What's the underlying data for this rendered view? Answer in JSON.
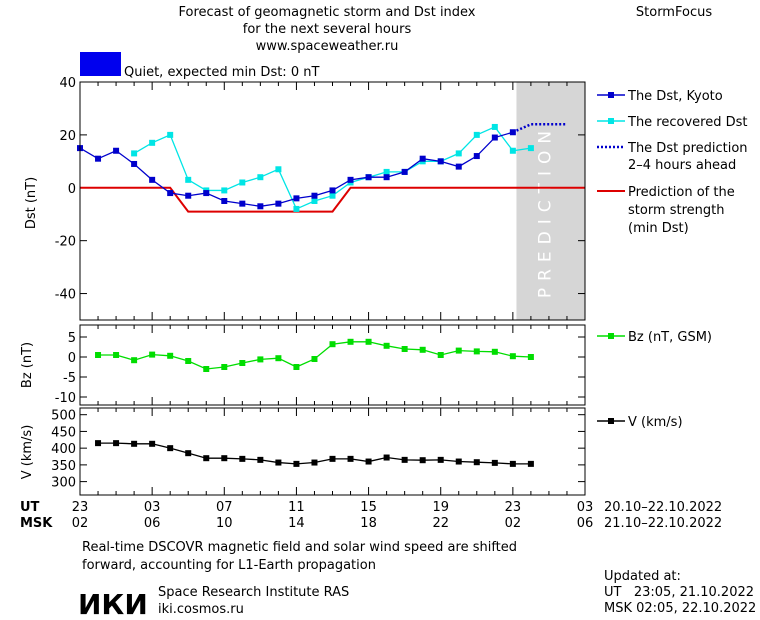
{
  "header": {
    "title_line1": "Forecast of geomagnetic storm and Dst index",
    "title_line2": "for the next several hours",
    "url": "www.spaceweather.ru",
    "brand": "StormFocus"
  },
  "status": {
    "text": "Quiet, expected min Dst: 0 nT",
    "color": "#0000ee"
  },
  "prediction_band_label": "PREDICTION",
  "colors": {
    "dst": "#0000cc",
    "recovered": "#00e5e5",
    "prediction_line": "#dd0000",
    "bz": "#00dd00",
    "v": "#000000",
    "prediction_band": "#d6d6d6"
  },
  "legend": {
    "dst": "The Dst, Kyoto",
    "recovered": "The recovered Dst",
    "dst_prediction_1": "The Dst prediction",
    "dst_prediction_2": "2–4 hours ahead",
    "storm_1": "Prediction of the",
    "storm_2": "storm strength",
    "storm_3": "(min Dst)",
    "bz": "Bz (nT, GSM)",
    "v": "V (km/s)"
  },
  "time_axis": {
    "ut_label": "UT",
    "msk_label": "MSK",
    "ut_ticks": [
      "23",
      "03",
      "07",
      "11",
      "15",
      "19",
      "23",
      "03"
    ],
    "msk_ticks": [
      "02",
      "06",
      "10",
      "14",
      "18",
      "22",
      "02",
      "06"
    ],
    "ut_range": "20.10–22.10.2022",
    "msk_range": "21.10–22.10.2022"
  },
  "footer": {
    "note_line1": "Real-time DSCOVR magnetic field and solar wind speed are shifted",
    "note_line2": "forward, accounting for L1-Earth propagation",
    "logo": "ИКИ",
    "institute": "Space Research Institute RAS",
    "site": "iki.cosmos.ru",
    "updated_label": "Updated at:",
    "updated_ut": "UT   23:05, 21.10.2022",
    "updated_msk": "MSK 02:05, 22.10.2022"
  },
  "chart_data": [
    {
      "type": "line",
      "ylabel": "Dst (nT)",
      "ylim": [
        -50,
        40
      ],
      "yticks": [
        40,
        20,
        0,
        -20,
        -40
      ],
      "x_unit": "hours since 23 UT, 20.10.2022",
      "xlim": [
        0,
        28
      ],
      "prediction_band_x": [
        24.2,
        28
      ],
      "series": [
        {
          "name": "The Dst, Kyoto",
          "x": [
            0,
            1,
            2,
            3,
            4,
            5,
            6,
            7,
            8,
            9,
            10,
            11,
            12,
            13,
            14,
            15,
            16,
            17,
            18,
            19,
            20,
            21,
            22,
            23,
            24
          ],
          "y": [
            15,
            11,
            14,
            9,
            3,
            -2,
            -3,
            -2,
            -5,
            -6,
            -7,
            -6,
            -4,
            -3,
            -1,
            3,
            4,
            4,
            6,
            11,
            10,
            8,
            12,
            19,
            21
          ]
        },
        {
          "name": "The recovered Dst",
          "x": [
            3,
            4,
            5,
            6,
            7,
            8,
            9,
            10,
            11,
            12,
            13,
            14,
            15,
            16,
            17,
            18,
            19,
            20,
            21,
            22,
            23,
            24,
            25
          ],
          "y": [
            13,
            17,
            20,
            3,
            -1,
            -1,
            2,
            4,
            7,
            -8,
            -5,
            -3,
            2,
            4,
            6,
            6,
            10,
            10,
            13,
            20,
            23,
            14,
            15
          ]
        },
        {
          "name": "The Dst prediction 2–4 hours ahead",
          "x": [
            24,
            25,
            26,
            27
          ],
          "y": [
            21,
            24,
            24,
            24
          ]
        }
      ],
      "storm_strength": {
        "name": "Prediction of the storm strength (min Dst)",
        "x": [
          0,
          5,
          6,
          14,
          15,
          28
        ],
        "y": [
          0,
          0,
          -9,
          -9,
          0,
          0
        ]
      }
    },
    {
      "type": "line",
      "ylabel": "Bz (nT)",
      "ylim": [
        -12,
        8
      ],
      "yticks": [
        5,
        0,
        -5,
        -10
      ],
      "series": [
        {
          "name": "Bz (nT, GSM)",
          "x": [
            1,
            2,
            3,
            4,
            5,
            6,
            7,
            8,
            9,
            10,
            11,
            12,
            13,
            14,
            15,
            16,
            17,
            18,
            19,
            20,
            21,
            22,
            23,
            24,
            25
          ],
          "y": [
            0.5,
            0.5,
            -0.8,
            0.6,
            0.3,
            -1.0,
            -3.0,
            -2.5,
            -1.5,
            -0.6,
            -0.3,
            -2.5,
            -0.5,
            3.2,
            3.8,
            3.8,
            2.8,
            2.0,
            1.8,
            0.5,
            1.6,
            1.4,
            1.3,
            0.2,
            0.0
          ]
        }
      ]
    },
    {
      "type": "line",
      "ylabel": "V (km/s)",
      "ylim": [
        260,
        520
      ],
      "yticks": [
        500,
        450,
        400,
        350,
        300
      ],
      "series": [
        {
          "name": "V (km/s)",
          "x": [
            1,
            2,
            3,
            4,
            5,
            6,
            7,
            8,
            9,
            10,
            11,
            12,
            13,
            14,
            15,
            16,
            17,
            18,
            19,
            20,
            21,
            22,
            23,
            24,
            25
          ],
          "y": [
            415,
            415,
            413,
            413,
            400,
            385,
            370,
            370,
            368,
            365,
            357,
            353,
            357,
            368,
            368,
            360,
            372,
            365,
            364,
            365,
            360,
            358,
            356,
            353,
            353
          ]
        }
      ]
    }
  ]
}
